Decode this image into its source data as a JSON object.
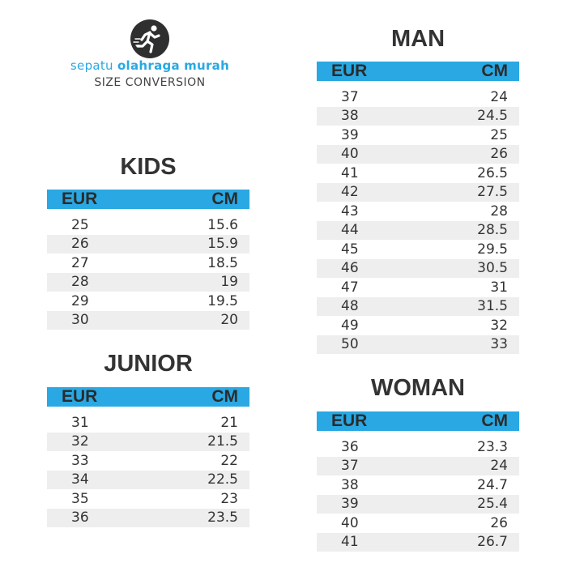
{
  "brand": {
    "name_part1": "sepatu",
    "name_part2": "olahraga",
    "name_part3": "murah",
    "subtitle": "SIZE CONVERSION"
  },
  "colors": {
    "accent": "#29a8e3",
    "stripe": "#eeeeee",
    "text": "#333333"
  },
  "headers": {
    "eur": "EUR",
    "cm": "CM"
  },
  "kids": {
    "title": "KIDS",
    "rows": [
      {
        "eur": "25",
        "cm": "15.6"
      },
      {
        "eur": "26",
        "cm": "15.9"
      },
      {
        "eur": "27",
        "cm": "18.5"
      },
      {
        "eur": "28",
        "cm": "19"
      },
      {
        "eur": "29",
        "cm": "19.5"
      },
      {
        "eur": "30",
        "cm": "20"
      }
    ]
  },
  "junior": {
    "title": "JUNIOR",
    "rows": [
      {
        "eur": "31",
        "cm": "21"
      },
      {
        "eur": "32",
        "cm": "21.5"
      },
      {
        "eur": "33",
        "cm": "22"
      },
      {
        "eur": "34",
        "cm": "22.5"
      },
      {
        "eur": "35",
        "cm": "23"
      },
      {
        "eur": "36",
        "cm": "23.5"
      }
    ]
  },
  "man": {
    "title": "MAN",
    "rows": [
      {
        "eur": "37",
        "cm": "24"
      },
      {
        "eur": "38",
        "cm": "24.5"
      },
      {
        "eur": "39",
        "cm": "25"
      },
      {
        "eur": "40",
        "cm": "26"
      },
      {
        "eur": "41",
        "cm": "26.5"
      },
      {
        "eur": "42",
        "cm": "27.5"
      },
      {
        "eur": "43",
        "cm": "28"
      },
      {
        "eur": "44",
        "cm": "28.5"
      },
      {
        "eur": "45",
        "cm": "29.5"
      },
      {
        "eur": "46",
        "cm": "30.5"
      },
      {
        "eur": "47",
        "cm": "31"
      },
      {
        "eur": "48",
        "cm": "31.5"
      },
      {
        "eur": "49",
        "cm": "32"
      },
      {
        "eur": "50",
        "cm": "33"
      }
    ]
  },
  "woman": {
    "title": "WOMAN",
    "rows": [
      {
        "eur": "36",
        "cm": "23.3"
      },
      {
        "eur": "37",
        "cm": "24"
      },
      {
        "eur": "38",
        "cm": "24.7"
      },
      {
        "eur": "39",
        "cm": "25.4"
      },
      {
        "eur": "40",
        "cm": "26"
      },
      {
        "eur": "41",
        "cm": "26.7"
      }
    ]
  }
}
